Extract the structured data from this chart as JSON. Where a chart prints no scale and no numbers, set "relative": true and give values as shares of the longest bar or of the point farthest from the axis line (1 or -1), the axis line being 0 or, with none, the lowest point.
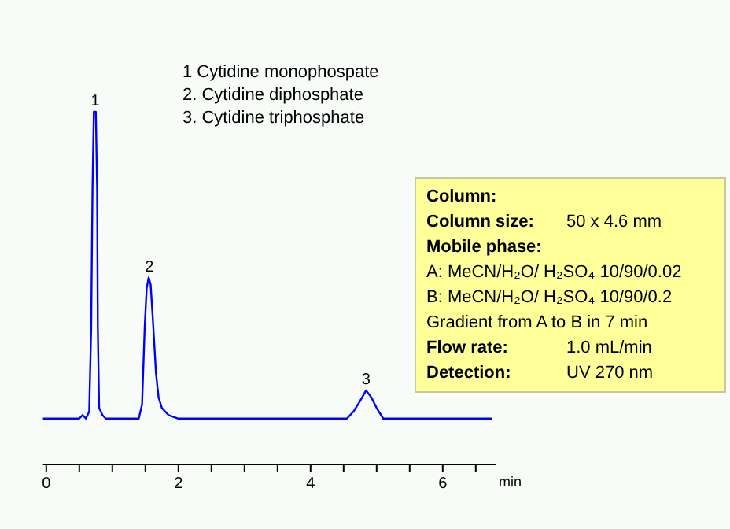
{
  "chart_data": [
    {
      "type": "line",
      "relative": true,
      "xlabel": "min",
      "xlim": [
        -0.05,
        6.8
      ],
      "xticks": [
        0,
        {
          "value": 0.5,
          "label": null
        },
        {
          "value": 1,
          "label": null
        },
        {
          "value": 1.5,
          "label": null
        },
        2,
        {
          "value": 2.5,
          "label": null
        },
        {
          "value": 3,
          "label": null
        },
        {
          "value": 3.5,
          "label": null
        },
        4,
        {
          "value": 4.5,
          "label": null
        },
        {
          "value": 5,
          "label": null
        },
        {
          "value": 5.5,
          "label": null
        },
        6,
        {
          "value": 6.5,
          "label": null
        }
      ],
      "tick_labels": "x",
      "grid": false,
      "marker": "none",
      "line_style": "solid",
      "x": [
        -0.05,
        0.5,
        0.55,
        0.6,
        0.65,
        0.68,
        0.7,
        0.72,
        0.75,
        0.77,
        0.78,
        0.8,
        0.85,
        0.9,
        1.4,
        1.45,
        1.49,
        1.52,
        1.55,
        1.58,
        1.62,
        1.66,
        1.7,
        1.75,
        1.85,
        2.0,
        4.4,
        4.55,
        4.65,
        4.75,
        4.84,
        4.92,
        5.0,
        5.1,
        5.2,
        6.75
      ],
      "series": [
        {
          "color": "#0000ff",
          "values": [
            0.13,
            0.13,
            0.14,
            0.13,
            0.15,
            0.39,
            0.78,
            1,
            1,
            0.78,
            0.39,
            0.16,
            0.14,
            0.13,
            0.13,
            0.17,
            0.39,
            0.5,
            0.53,
            0.51,
            0.39,
            0.26,
            0.19,
            0.16,
            0.14,
            0.13,
            0.13,
            0.13,
            0.15,
            0.18,
            0.21,
            0.19,
            0.16,
            0.13,
            0.13,
            0.13
          ]
        }
      ],
      "annotations": [
        {
          "text": "1",
          "x": 0.74,
          "y": 1
        },
        {
          "text": "2",
          "x": 1.56,
          "y": 0.53
        },
        {
          "text": "3",
          "x": 4.84,
          "y": 0.21
        },
        "1 Cytidine monophospate",
        "2. Cytidine diphosphate",
        "3. Cytidine triphosphate"
      ]
    },
    {
      "type": "other",
      "annotations": [
        "Column:\t",
        "Column size:\t50 x  4.6 mm",
        "Mobile phase:\t",
        "A:  MeCN/H₂O/ H₂SO₄ 10/90/0.02",
        "B:  MeCN/H₂O/ H₂SO₄ 10/90/0.2",
        "Gradient from A to B in 7 min",
        "Flow rate:\t1.0 mL/min",
        "Detection:\tUV 270 nm"
      ]
    }
  ]
}
